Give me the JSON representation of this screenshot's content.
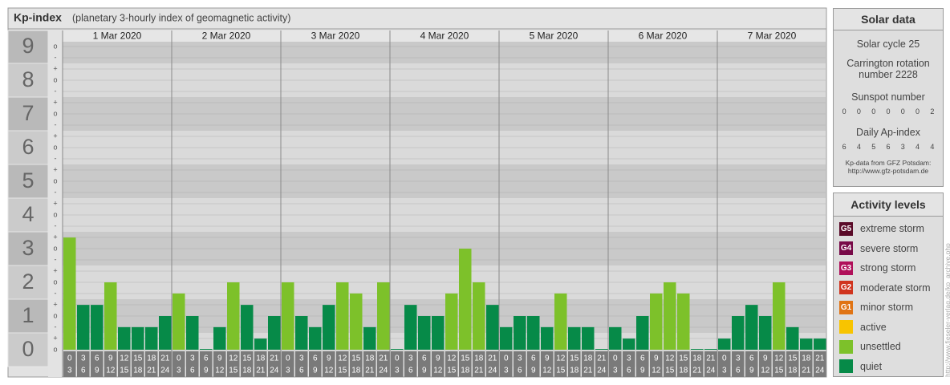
{
  "title": "Kp-index",
  "subtitle": "(planetary 3-hourly index of geomagnetic activity)",
  "chart_data": {
    "type": "bar",
    "categories": [
      "1 Mar 2020",
      "2 Mar 2020",
      "3 Mar 2020",
      "4 Mar 2020",
      "5 Mar 2020",
      "6 Mar 2020",
      "7 Mar 2020"
    ],
    "hours": [
      [
        0,
        3
      ],
      [
        3,
        6
      ],
      [
        6,
        9
      ],
      [
        9,
        12
      ],
      [
        12,
        15
      ],
      [
        15,
        18
      ],
      [
        18,
        21
      ],
      [
        21,
        24
      ]
    ],
    "values": [
      [
        3.33,
        1.33,
        1.33,
        2,
        0.67,
        0.67,
        0.67,
        1
      ],
      [
        1.67,
        1,
        0,
        0.67,
        2,
        1.33,
        0.33,
        1
      ],
      [
        2,
        1,
        0.67,
        1.33,
        2,
        1.67,
        0.67,
        2
      ],
      [
        0,
        1.33,
        1,
        1,
        1.67,
        3,
        2,
        1.33
      ],
      [
        0.67,
        1,
        1,
        0.67,
        1.67,
        0.67,
        0.67,
        0
      ],
      [
        0.67,
        0.33,
        1,
        1.67,
        2,
        1.67,
        0,
        0
      ],
      [
        0.33,
        1,
        1.33,
        1,
        2,
        0.67,
        0.33,
        0.33
      ]
    ],
    "colors": [
      [
        "#7dc12a",
        "#068a48",
        "#068a48",
        "#7dc12a",
        "#068a48",
        "#068a48",
        "#068a48",
        "#068a48"
      ],
      [
        "#7dc12a",
        "#068a48",
        "#068a48",
        "#068a48",
        "#7dc12a",
        "#068a48",
        "#068a48",
        "#068a48"
      ],
      [
        "#7dc12a",
        "#068a48",
        "#068a48",
        "#068a48",
        "#7dc12a",
        "#7dc12a",
        "#068a48",
        "#7dc12a"
      ],
      [
        "#068a48",
        "#068a48",
        "#068a48",
        "#068a48",
        "#7dc12a",
        "#7dc12a",
        "#7dc12a",
        "#068a48"
      ],
      [
        "#068a48",
        "#068a48",
        "#068a48",
        "#068a48",
        "#7dc12a",
        "#068a48",
        "#068a48",
        "#068a48"
      ],
      [
        "#068a48",
        "#068a48",
        "#068a48",
        "#7dc12a",
        "#7dc12a",
        "#7dc12a",
        "#068a48",
        "#068a48"
      ],
      [
        "#068a48",
        "#068a48",
        "#068a48",
        "#068a48",
        "#7dc12a",
        "#068a48",
        "#068a48",
        "#068a48"
      ]
    ],
    "ylim": [
      -0.5,
      9.5
    ],
    "yticks": [
      0,
      1,
      2,
      3,
      4,
      5,
      6,
      7,
      8,
      9
    ],
    "sub_tick_labels": [
      "-",
      "o",
      "+"
    ]
  },
  "solar_data": {
    "title": "Solar data",
    "cycle": "Solar cycle 25",
    "carrington": "Carrington rotation number 2228",
    "sunspot_label": "Sunspot number",
    "sunspot": [
      0,
      0,
      0,
      0,
      0,
      0,
      2
    ],
    "ap_label": "Daily Ap-index",
    "ap": [
      6,
      4,
      5,
      6,
      3,
      4,
      4
    ],
    "source": "Kp-data from GFZ Potsdam:",
    "source_url": "http://www.gfz-potsdam.de"
  },
  "activity_levels": {
    "title": "Activity levels",
    "items": [
      {
        "code": "G5",
        "label": "extreme storm",
        "color": "#5a0a28"
      },
      {
        "code": "G4",
        "label": "severe storm",
        "color": "#780a48"
      },
      {
        "code": "G3",
        "label": "strong storm",
        "color": "#b0105a"
      },
      {
        "code": "G2",
        "label": "moderate storm",
        "color": "#d0341e"
      },
      {
        "code": "G1",
        "label": "minor storm",
        "color": "#e07414"
      },
      {
        "label": "active",
        "color": "#f8c400"
      },
      {
        "label": "unsettled",
        "color": "#7dc12a"
      },
      {
        "label": "quiet",
        "color": "#068a48"
      }
    ]
  },
  "watermark": "http://www.fieseler-verlag.de/kp_archive.php"
}
